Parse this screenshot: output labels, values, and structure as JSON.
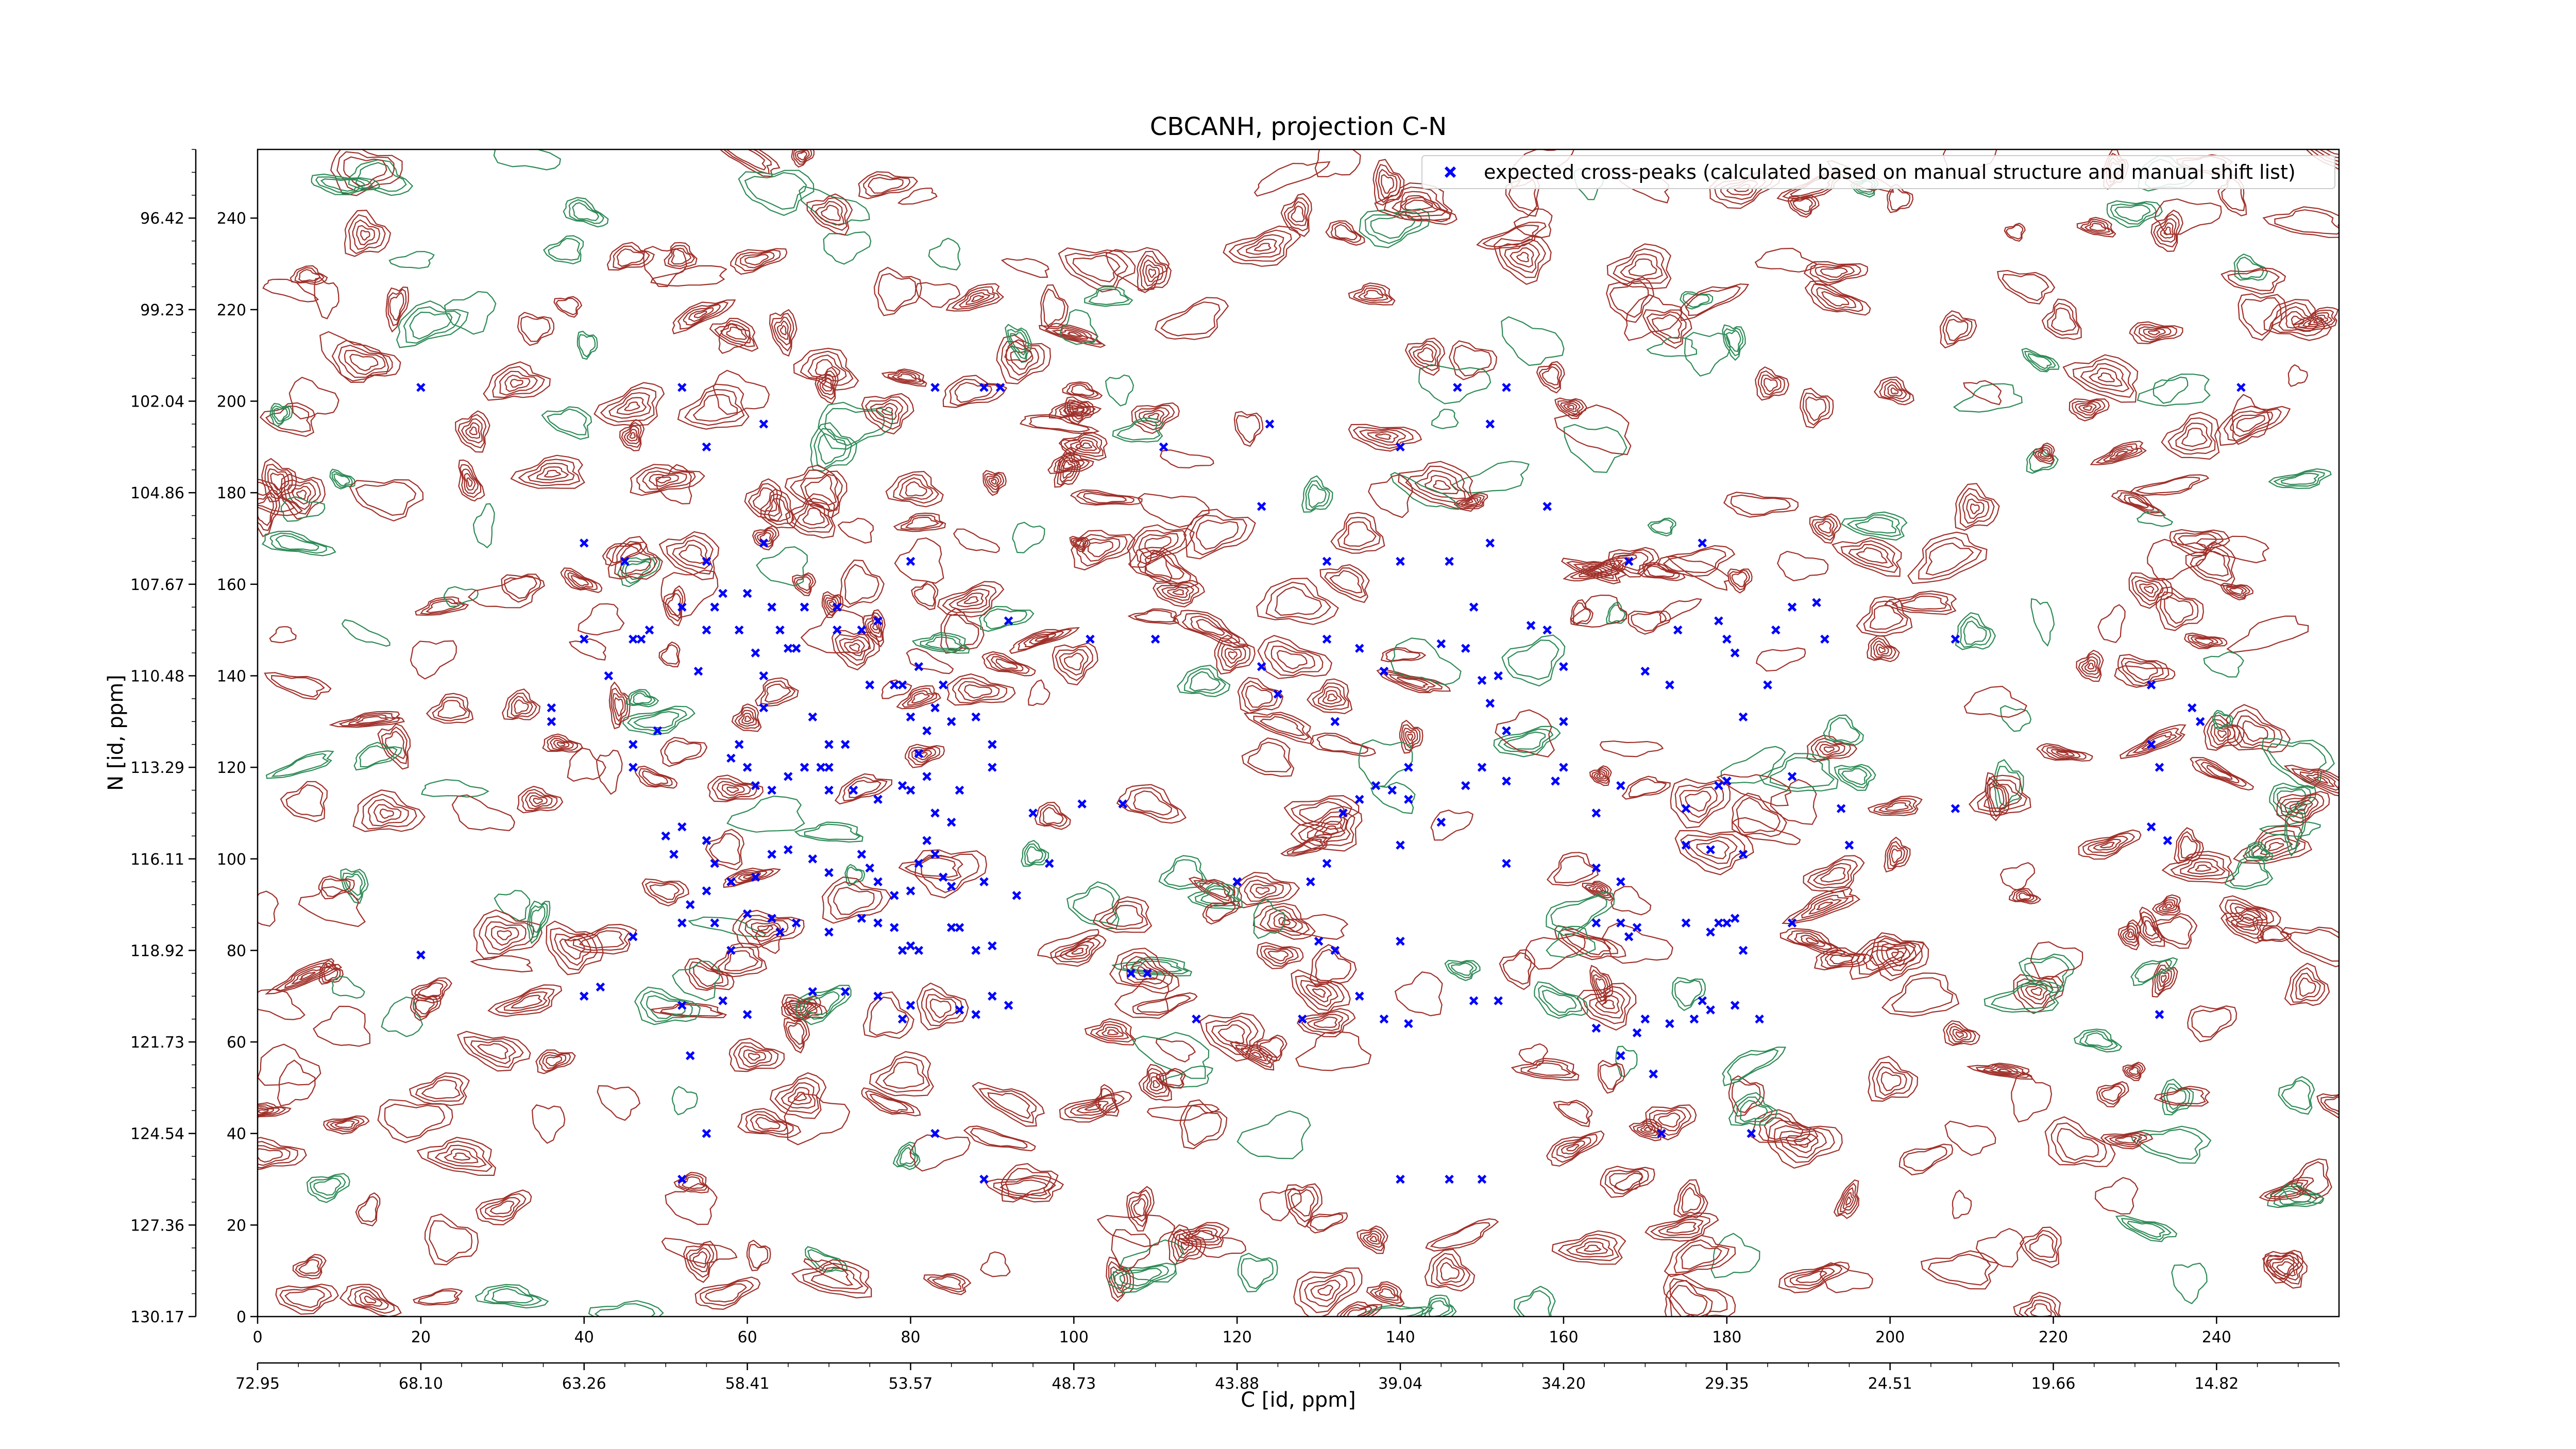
{
  "chart_data": {
    "type": "scatter",
    "title": "CBCANH, projection C-N",
    "xlabel": "C [id, ppm]",
    "ylabel": "N [id, ppm]",
    "xlim": [
      0,
      255
    ],
    "ylim": [
      0,
      255
    ],
    "x_ticks": [
      0,
      20,
      40,
      60,
      80,
      100,
      120,
      140,
      160,
      180,
      200,
      220,
      240
    ],
    "y_ticks": [
      0,
      20,
      40,
      60,
      80,
      100,
      120,
      140,
      160,
      180,
      200,
      220,
      240
    ],
    "x_ppm_labels": [
      "72.95",
      "68.10",
      "63.26",
      "58.41",
      "53.57",
      "48.73",
      "43.88",
      "39.04",
      "34.20",
      "29.35",
      "24.51",
      "19.66",
      "14.82"
    ],
    "y_ppm_labels": [
      "130.17",
      "127.36",
      "124.54",
      "121.73",
      "118.92",
      "116.11",
      "113.29",
      "110.48",
      "107.67",
      "104.86",
      "102.04",
      "99.23",
      "96.42"
    ],
    "grid": false,
    "legend_position": "top-right",
    "contours": {
      "positive_color": "#a0302a",
      "negative_color": "#2e8b57"
    },
    "series": [
      {
        "name": "expected cross-peaks (calculated based on manual structure and manual shift list)",
        "color": "#0000ff",
        "marker": "x",
        "points": [
          [
            20,
            203
          ],
          [
            52,
            203
          ],
          [
            62,
            195
          ],
          [
            55,
            190
          ],
          [
            83,
            203
          ],
          [
            89,
            203
          ],
          [
            91,
            203
          ],
          [
            111,
            190
          ],
          [
            124,
            195
          ],
          [
            147,
            203
          ],
          [
            151,
            195
          ],
          [
            153,
            203
          ],
          [
            243,
            203
          ],
          [
            40,
            169
          ],
          [
            45,
            165
          ],
          [
            55,
            165
          ],
          [
            62,
            169
          ],
          [
            80,
            165
          ],
          [
            123,
            177
          ],
          [
            131,
            165
          ],
          [
            140,
            190
          ],
          [
            140,
            165
          ],
          [
            146,
            165
          ],
          [
            151,
            169
          ],
          [
            158,
            177
          ],
          [
            168,
            165
          ],
          [
            177,
            169
          ],
          [
            40,
            148
          ],
          [
            46,
            148
          ],
          [
            36,
            133
          ],
          [
            36,
            130
          ],
          [
            43,
            140
          ],
          [
            47,
            148
          ],
          [
            46,
            125
          ],
          [
            46,
            120
          ],
          [
            48,
            150
          ],
          [
            49,
            128
          ],
          [
            52,
            155
          ],
          [
            56,
            155
          ],
          [
            54,
            141
          ],
          [
            55,
            150
          ],
          [
            57,
            158
          ],
          [
            59,
            150
          ],
          [
            60,
            158
          ],
          [
            61,
            145
          ],
          [
            62,
            140
          ],
          [
            62,
            133
          ],
          [
            63,
            155
          ],
          [
            64,
            150
          ],
          [
            65,
            146
          ],
          [
            66,
            146
          ],
          [
            67,
            155
          ],
          [
            68,
            131
          ],
          [
            69,
            120
          ],
          [
            70,
            125
          ],
          [
            70,
            120
          ],
          [
            71,
            155
          ],
          [
            71,
            150
          ],
          [
            72,
            125
          ],
          [
            74,
            150
          ],
          [
            75,
            138
          ],
          [
            76,
            152
          ],
          [
            78,
            138
          ],
          [
            79,
            138
          ],
          [
            80,
            131
          ],
          [
            81,
            142
          ],
          [
            83,
            133
          ],
          [
            84,
            138
          ],
          [
            82,
            128
          ],
          [
            85,
            130
          ],
          [
            88,
            131
          ],
          [
            90,
            125
          ],
          [
            90,
            120
          ],
          [
            92,
            152
          ],
          [
            102,
            148
          ],
          [
            106,
            112
          ],
          [
            110,
            148
          ],
          [
            123,
            142
          ],
          [
            125,
            136
          ],
          [
            131,
            148
          ],
          [
            132,
            130
          ],
          [
            135,
            146
          ],
          [
            138,
            141
          ],
          [
            145,
            147
          ],
          [
            148,
            146
          ],
          [
            149,
            155
          ],
          [
            150,
            139
          ],
          [
            151,
            134
          ],
          [
            152,
            140
          ],
          [
            153,
            128
          ],
          [
            156,
            151
          ],
          [
            158,
            150
          ],
          [
            160,
            130
          ],
          [
            160,
            120
          ],
          [
            160,
            142
          ],
          [
            170,
            141
          ],
          [
            173,
            138
          ],
          [
            174,
            150
          ],
          [
            179,
            152
          ],
          [
            180,
            148
          ],
          [
            181,
            145
          ],
          [
            182,
            131
          ],
          [
            185,
            138
          ],
          [
            186,
            150
          ],
          [
            188,
            155
          ],
          [
            191,
            156
          ],
          [
            192,
            148
          ],
          [
            208,
            148
          ],
          [
            232,
            138
          ],
          [
            232,
            125
          ],
          [
            233,
            120
          ],
          [
            237,
            133
          ],
          [
            238,
            130
          ],
          [
            58,
            122
          ],
          [
            59,
            125
          ],
          [
            60,
            120
          ],
          [
            61,
            116
          ],
          [
            63,
            115
          ],
          [
            65,
            118
          ],
          [
            67,
            120
          ],
          [
            70,
            115
          ],
          [
            73,
            115
          ],
          [
            76,
            113
          ],
          [
            79,
            116
          ],
          [
            80,
            115
          ],
          [
            81,
            123
          ],
          [
            82,
            118
          ],
          [
            83,
            110
          ],
          [
            85,
            108
          ],
          [
            86,
            115
          ],
          [
            95,
            110
          ],
          [
            101,
            112
          ],
          [
            133,
            110
          ],
          [
            135,
            113
          ],
          [
            137,
            116
          ],
          [
            139,
            115
          ],
          [
            141,
            120
          ],
          [
            141,
            113
          ],
          [
            145,
            108
          ],
          [
            148,
            116
          ],
          [
            150,
            120
          ],
          [
            153,
            117
          ],
          [
            159,
            117
          ],
          [
            164,
            110
          ],
          [
            167,
            116
          ],
          [
            175,
            111
          ],
          [
            179,
            116
          ],
          [
            180,
            117
          ],
          [
            188,
            118
          ],
          [
            194,
            111
          ],
          [
            208,
            111
          ],
          [
            50,
            105
          ],
          [
            51,
            101
          ],
          [
            52,
            107
          ],
          [
            55,
            104
          ],
          [
            56,
            99
          ],
          [
            58,
            95
          ],
          [
            61,
            96
          ],
          [
            63,
            101
          ],
          [
            65,
            102
          ],
          [
            68,
            100
          ],
          [
            70,
            97
          ],
          [
            74,
            101
          ],
          [
            75,
            98
          ],
          [
            76,
            95
          ],
          [
            78,
            92
          ],
          [
            80,
            93
          ],
          [
            81,
            99
          ],
          [
            82,
            104
          ],
          [
            83,
            101
          ],
          [
            84,
            96
          ],
          [
            85,
            94
          ],
          [
            89,
            95
          ],
          [
            93,
            92
          ],
          [
            97,
            99
          ],
          [
            120,
            95
          ],
          [
            129,
            95
          ],
          [
            131,
            99
          ],
          [
            140,
            103
          ],
          [
            153,
            99
          ],
          [
            164,
            98
          ],
          [
            167,
            95
          ],
          [
            175,
            103
          ],
          [
            178,
            102
          ],
          [
            182,
            101
          ],
          [
            195,
            103
          ],
          [
            232,
            107
          ],
          [
            234,
            104
          ],
          [
            20,
            79
          ],
          [
            40,
            70
          ],
          [
            46,
            83
          ],
          [
            52,
            86
          ],
          [
            53,
            90
          ],
          [
            55,
            93
          ],
          [
            56,
            86
          ],
          [
            58,
            80
          ],
          [
            60,
            88
          ],
          [
            63,
            87
          ],
          [
            64,
            84
          ],
          [
            66,
            86
          ],
          [
            70,
            84
          ],
          [
            74,
            87
          ],
          [
            76,
            86
          ],
          [
            78,
            85
          ],
          [
            79,
            80
          ],
          [
            80,
            81
          ],
          [
            81,
            80
          ],
          [
            85,
            85
          ],
          [
            86,
            85
          ],
          [
            88,
            80
          ],
          [
            90,
            81
          ],
          [
            107,
            75
          ],
          [
            109,
            75
          ],
          [
            130,
            82
          ],
          [
            132,
            80
          ],
          [
            140,
            82
          ],
          [
            164,
            86
          ],
          [
            167,
            86
          ],
          [
            168,
            83
          ],
          [
            169,
            85
          ],
          [
            175,
            86
          ],
          [
            178,
            84
          ],
          [
            179,
            86
          ],
          [
            180,
            86
          ],
          [
            181,
            87
          ],
          [
            182,
            80
          ],
          [
            188,
            86
          ],
          [
            42,
            72
          ],
          [
            52,
            68
          ],
          [
            57,
            69
          ],
          [
            60,
            66
          ],
          [
            68,
            71
          ],
          [
            72,
            71
          ],
          [
            76,
            70
          ],
          [
            79,
            65
          ],
          [
            80,
            68
          ],
          [
            86,
            67
          ],
          [
            88,
            66
          ],
          [
            90,
            70
          ],
          [
            92,
            68
          ],
          [
            115,
            65
          ],
          [
            128,
            65
          ],
          [
            135,
            70
          ],
          [
            138,
            65
          ],
          [
            141,
            64
          ],
          [
            149,
            69
          ],
          [
            152,
            69
          ],
          [
            164,
            63
          ],
          [
            169,
            62
          ],
          [
            170,
            65
          ],
          [
            173,
            64
          ],
          [
            176,
            65
          ],
          [
            177,
            69
          ],
          [
            178,
            67
          ],
          [
            181,
            68
          ],
          [
            184,
            65
          ],
          [
            233,
            66
          ],
          [
            53,
            57
          ],
          [
            55,
            40
          ],
          [
            52,
            30
          ],
          [
            83,
            40
          ],
          [
            89,
            30
          ],
          [
            140,
            30
          ],
          [
            146,
            30
          ],
          [
            150,
            30
          ],
          [
            167,
            57
          ],
          [
            171,
            53
          ],
          [
            172,
            40
          ],
          [
            183,
            40
          ]
        ]
      }
    ]
  }
}
